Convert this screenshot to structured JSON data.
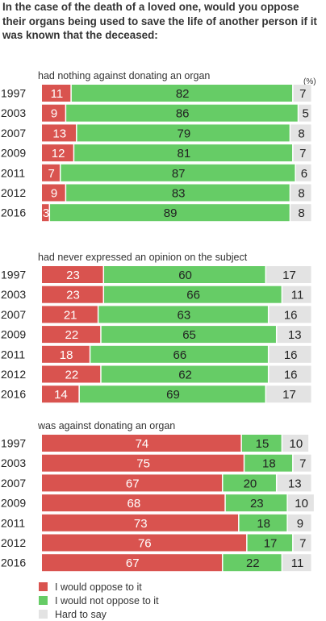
{
  "title": "In the case of the death of a loved one, would you oppose their organs being used to save the life of another person if it was known that the deceased:",
  "unit_label": "(%)",
  "colors": {
    "oppose": "#d9534f",
    "not_oppose": "#66cc66",
    "hard": "#e3e3e3"
  },
  "legend": [
    {
      "label": "I would oppose to it",
      "key": "oppose"
    },
    {
      "label": "I would not oppose to it",
      "key": "not_oppose"
    },
    {
      "label": "Hard to say",
      "key": "hard"
    }
  ],
  "chart_data": [
    {
      "type": "bar",
      "stacked": true,
      "orientation": "horizontal",
      "subtitle": "had nothing against donating an organ",
      "categories": [
        "1997",
        "2003",
        "2007",
        "2009",
        "2011",
        "2012",
        "2016"
      ],
      "series": [
        {
          "name": "I would oppose to it",
          "values": [
            11,
            9,
            13,
            12,
            7,
            9,
            3
          ]
        },
        {
          "name": "I would not oppose to it",
          "values": [
            82,
            86,
            79,
            81,
            87,
            83,
            89
          ]
        },
        {
          "name": "Hard to say",
          "values": [
            7,
            5,
            8,
            7,
            6,
            8,
            8
          ]
        }
      ]
    },
    {
      "type": "bar",
      "stacked": true,
      "orientation": "horizontal",
      "subtitle": "had never expressed an opinion on the subject",
      "categories": [
        "1997",
        "2003",
        "2007",
        "2009",
        "2011",
        "2012",
        "2016"
      ],
      "series": [
        {
          "name": "I would oppose to it",
          "values": [
            23,
            23,
            21,
            22,
            18,
            22,
            14
          ]
        },
        {
          "name": "I would not oppose to it",
          "values": [
            60,
            66,
            63,
            65,
            66,
            62,
            69
          ]
        },
        {
          "name": "Hard to say",
          "values": [
            17,
            11,
            16,
            13,
            16,
            16,
            17
          ]
        }
      ]
    },
    {
      "type": "bar",
      "stacked": true,
      "orientation": "horizontal",
      "subtitle": "was against donating an organ",
      "categories": [
        "1997",
        "2003",
        "2007",
        "2009",
        "2011",
        "2012",
        "2016"
      ],
      "series": [
        {
          "name": "I would oppose to it",
          "values": [
            74,
            75,
            67,
            68,
            73,
            76,
            67
          ]
        },
        {
          "name": "I would not oppose to it",
          "values": [
            15,
            18,
            20,
            23,
            18,
            17,
            22
          ]
        },
        {
          "name": "Hard to say",
          "values": [
            10,
            7,
            13,
            10,
            9,
            7,
            11
          ]
        }
      ]
    }
  ]
}
